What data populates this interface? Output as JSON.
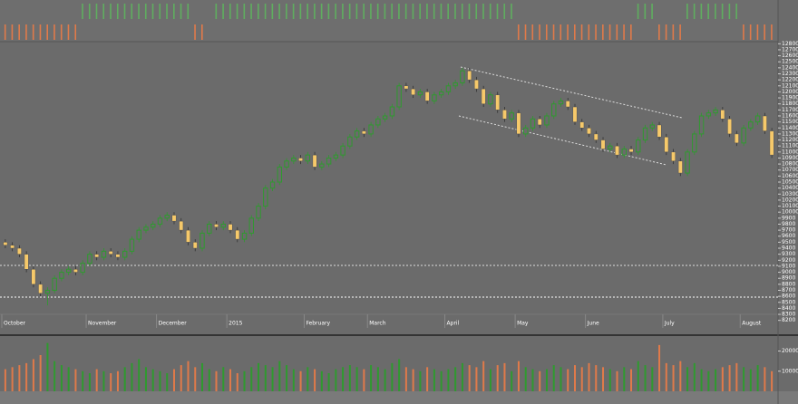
{
  "chart_data": [
    {
      "type": "candlestick",
      "up_color": "#2f9a2f",
      "down_color": "#f6c96a",
      "categories": [
        "October",
        null,
        null,
        null,
        null,
        null,
        null,
        null,
        null,
        null,
        null,
        null,
        "November",
        null,
        null,
        null,
        null,
        null,
        null,
        null,
        null,
        null,
        "December",
        null,
        null,
        null,
        null,
        null,
        null,
        null,
        null,
        null,
        "2015",
        null,
        null,
        null,
        null,
        null,
        null,
        null,
        null,
        null,
        null,
        "February",
        null,
        null,
        null,
        null,
        null,
        null,
        null,
        null,
        "March",
        null,
        null,
        null,
        null,
        null,
        null,
        null,
        null,
        null,
        null,
        "April",
        null,
        null,
        null,
        null,
        null,
        null,
        null,
        null,
        null,
        "May",
        null,
        null,
        null,
        null,
        null,
        null,
        null,
        null,
        null,
        "June",
        null,
        null,
        null,
        null,
        null,
        null,
        null,
        null,
        null,
        null,
        "July",
        null,
        null,
        null,
        null,
        null,
        null,
        null,
        null,
        null,
        null,
        "August",
        null,
        null,
        null,
        null
      ],
      "open": [
        9500,
        9450,
        9400,
        9300,
        9050,
        8800,
        8650,
        8700,
        8900,
        9000,
        9050,
        9000,
        9150,
        9300,
        9250,
        9350,
        9300,
        9250,
        9350,
        9550,
        9700,
        9750,
        9800,
        9900,
        9950,
        9850,
        9700,
        9500,
        9400,
        9650,
        9800,
        9750,
        9800,
        9700,
        9550,
        9650,
        9900,
        10100,
        10400,
        10500,
        10750,
        10850,
        10900,
        10850,
        10950,
        10750,
        10800,
        10900,
        10950,
        11100,
        11250,
        11350,
        11300,
        11450,
        11550,
        11600,
        11750,
        12100,
        12050,
        11950,
        12000,
        11850,
        11950,
        12000,
        12100,
        12150,
        12350,
        12200,
        12050,
        11800,
        11950,
        11700,
        11550,
        11650,
        11300,
        11400,
        11550,
        11450,
        11600,
        11800,
        11850,
        11750,
        11500,
        11400,
        11300,
        11200,
        11050,
        11100,
        10950,
        11050,
        11000,
        11200,
        11400,
        11450,
        11250,
        11000,
        10850,
        10650,
        11000,
        11300,
        11600,
        11650,
        11700,
        11550,
        11300,
        11150,
        11400,
        11500,
        11600,
        11350
      ],
      "close": [
        9450,
        9400,
        9300,
        9050,
        8800,
        8650,
        8700,
        8900,
        9000,
        9050,
        9000,
        9150,
        9300,
        9250,
        9350,
        9300,
        9250,
        9350,
        9550,
        9700,
        9750,
        9800,
        9900,
        9950,
        9850,
        9700,
        9500,
        9400,
        9650,
        9800,
        9750,
        9800,
        9700,
        9550,
        9650,
        9900,
        10100,
        10400,
        10500,
        10750,
        10850,
        10900,
        10850,
        10950,
        10750,
        10800,
        10900,
        10950,
        11100,
        11250,
        11350,
        11300,
        11450,
        11550,
        11600,
        11750,
        12100,
        12050,
        11950,
        12000,
        11850,
        11950,
        12000,
        12100,
        12150,
        12350,
        12200,
        12050,
        11800,
        11950,
        11700,
        11550,
        11650,
        11300,
        11400,
        11550,
        11450,
        11600,
        11800,
        11850,
        11750,
        11500,
        11400,
        11300,
        11200,
        11050,
        11100,
        10950,
        11050,
        11000,
        11200,
        11400,
        11450,
        11250,
        11000,
        10850,
        10650,
        11000,
        11300,
        11600,
        11650,
        11700,
        11550,
        11300,
        11150,
        11400,
        11500,
        11600,
        11350,
        10950
      ],
      "high": [
        9550,
        9500,
        9450,
        9350,
        9100,
        8850,
        8750,
        8950,
        9050,
        9100,
        9100,
        9200,
        9350,
        9350,
        9400,
        9400,
        9350,
        9400,
        9600,
        9750,
        9800,
        9850,
        9950,
        10000,
        10000,
        9900,
        9750,
        9550,
        9700,
        9850,
        9850,
        9850,
        9850,
        9750,
        9700,
        9950,
        10150,
        10450,
        10550,
        10800,
        10900,
        10950,
        10950,
        11000,
        11000,
        10850,
        10950,
        11000,
        11150,
        11300,
        11400,
        11400,
        11500,
        11600,
        11650,
        11800,
        12150,
        12150,
        12100,
        12050,
        12050,
        12000,
        12050,
        12150,
        12200,
        12400,
        12400,
        12250,
        12100,
        12000,
        12000,
        11750,
        11700,
        11700,
        11450,
        11600,
        11600,
        11650,
        11850,
        11900,
        11900,
        11800,
        11550,
        11450,
        11350,
        11250,
        11150,
        11150,
        11100,
        11100,
        11250,
        11450,
        11500,
        11500,
        11300,
        11050,
        10900,
        11050,
        11350,
        11650,
        11700,
        11750,
        11750,
        11600,
        11350,
        11450,
        11550,
        11650,
        11650,
        11400
      ],
      "low": [
        9400,
        9350,
        9250,
        9000,
        8750,
        8600,
        8450,
        8650,
        8850,
        8950,
        8950,
        8950,
        9100,
        9200,
        9200,
        9250,
        9200,
        9200,
        9300,
        9500,
        9650,
        9700,
        9750,
        9850,
        9800,
        9650,
        9450,
        9350,
        9350,
        9600,
        9700,
        9700,
        9650,
        9500,
        9500,
        9600,
        9850,
        10050,
        10350,
        10450,
        10700,
        10800,
        10800,
        10800,
        10700,
        10700,
        10750,
        10850,
        10900,
        11050,
        11200,
        11250,
        11250,
        11400,
        11500,
        11550,
        11700,
        12000,
        11900,
        11900,
        11800,
        11800,
        11900,
        11950,
        12050,
        12100,
        12150,
        12000,
        11750,
        11750,
        11650,
        11500,
        11500,
        11250,
        11250,
        11350,
        11400,
        11400,
        11550,
        11750,
        11700,
        11450,
        11350,
        11250,
        11150,
        11000,
        11000,
        10900,
        10900,
        10950,
        10950,
        11150,
        11350,
        11200,
        10950,
        10800,
        10600,
        10600,
        10950,
        11250,
        11550,
        11600,
        11500,
        11250,
        11100,
        11100,
        11350,
        11450,
        11300,
        10900
      ],
      "ylim": [
        8150,
        12850
      ],
      "yticks": [
        8200,
        8300,
        8400,
        8500,
        8600,
        8700,
        8800,
        8900,
        9000,
        9100,
        9200,
        9300,
        9400,
        9500,
        9600,
        9700,
        9800,
        9900,
        10000,
        10100,
        10200,
        10300,
        10400,
        10500,
        10600,
        10700,
        10800,
        10900,
        11000,
        11100,
        11200,
        11300,
        11400,
        11500,
        11600,
        11700,
        11800,
        11900,
        12000,
        12100,
        12200,
        12300,
        12400,
        12500,
        12600,
        12700,
        12800
      ]
    },
    {
      "type": "bar",
      "values": [
        11000,
        12000,
        13000,
        14000,
        16000,
        18000,
        24000,
        15000,
        13000,
        12000,
        11000,
        10000,
        9000,
        11000,
        10000,
        9000,
        10000,
        12000,
        14000,
        16000,
        12000,
        11000,
        10000,
        9000,
        11000,
        13000,
        15000,
        12000,
        14000,
        11000,
        10000,
        12000,
        11000,
        9000,
        10000,
        12000,
        14000,
        13000,
        12000,
        15000,
        13000,
        11000,
        10000,
        12000,
        11000,
        10000,
        9000,
        11000,
        12000,
        13000,
        12000,
        11000,
        13000,
        12000,
        11000,
        14000,
        16000,
        12000,
        11000,
        10000,
        12000,
        11000,
        10000,
        11000,
        12000,
        14000,
        13000,
        12000,
        15000,
        11000,
        13000,
        14000,
        10000,
        15000,
        12000,
        11000,
        10000,
        11000,
        13000,
        12000,
        11000,
        13000,
        12000,
        14000,
        13000,
        12000,
        11000,
        10000,
        12000,
        11000,
        15000,
        13000,
        12000,
        23000,
        14000,
        13000,
        15000,
        12000,
        14000,
        11000,
        10000,
        11000,
        12000,
        13000,
        14000,
        12000,
        11000,
        13000,
        12000,
        10000
      ],
      "ylim": [
        0,
        27000
      ],
      "yticks": [
        10000,
        20000
      ]
    },
    {
      "type": "signal",
      "values": [
        -1,
        -1,
        -1,
        -1,
        -1,
        -1,
        -1,
        -1,
        -1,
        -1,
        -1,
        1,
        1,
        1,
        1,
        1,
        1,
        1,
        1,
        1,
        1,
        1,
        1,
        1,
        1,
        1,
        1,
        -1,
        -1,
        0,
        1,
        1,
        1,
        1,
        1,
        1,
        1,
        1,
        1,
        1,
        1,
        1,
        1,
        1,
        1,
        1,
        1,
        1,
        1,
        1,
        1,
        1,
        1,
        1,
        1,
        1,
        1,
        1,
        1,
        1,
        1,
        1,
        1,
        1,
        1,
        1,
        1,
        1,
        1,
        1,
        1,
        1,
        1,
        -1,
        -1,
        -1,
        -1,
        -1,
        -1,
        -1,
        -1,
        -1,
        -1,
        -1,
        -1,
        -1,
        -1,
        -1,
        -1,
        -1,
        1,
        1,
        1,
        -1,
        -1,
        -1,
        -1,
        1,
        1,
        1,
        1,
        1,
        1,
        1,
        1,
        -1,
        -1,
        -1,
        -1,
        -1
      ],
      "up_color": "#5fae5f",
      "down_color": "#e07a4a",
      "ylim": [
        -1,
        1
      ]
    }
  ]
}
